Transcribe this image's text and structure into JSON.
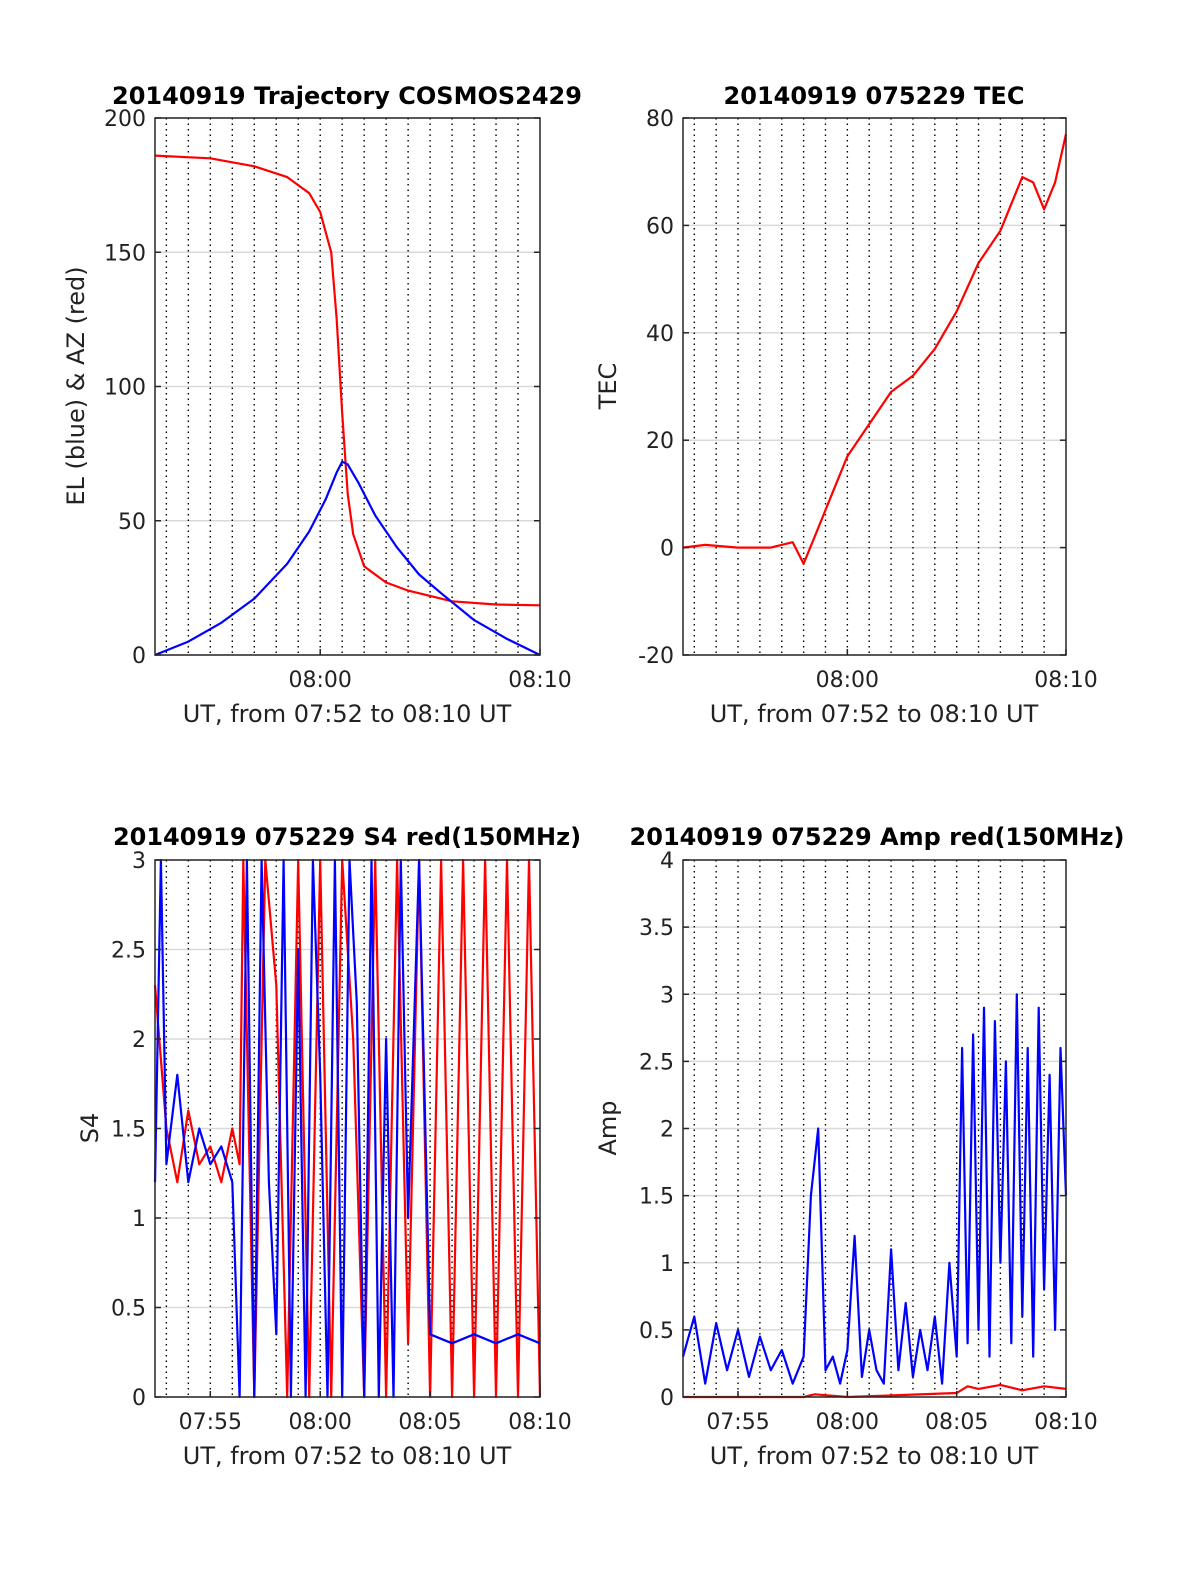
{
  "colors": {
    "az": "#ff0000",
    "el": "#0000ff",
    "red": "#ff0000",
    "blue": "#0000ff",
    "grid": "#d9d9d9",
    "vline": "#000000"
  },
  "chart_data": [
    {
      "id": "trajectory",
      "type": "line",
      "title": "20140919 Trajectory COSMOS2429",
      "xlabel": "UT, from 07:52 to 08:10 UT",
      "ylabel": "EL (blue) & AZ (red)",
      "xlim": [
        "07:52:29",
        "08:10:00"
      ],
      "ylim": [
        0,
        200
      ],
      "yticks": [
        "0",
        "50",
        "100",
        "150",
        "200"
      ],
      "xticks": [
        {
          "t": "08:00",
          "label": "08:00"
        },
        {
          "t": "08:10",
          "label": "08:10"
        }
      ],
      "grid": "horizontal",
      "series": [
        {
          "key": "az",
          "color": "#ff0000",
          "t": [
            "07:52:29",
            "07:55:00",
            "07:57:00",
            "07:58:30",
            "07:59:30",
            "08:00:00",
            "08:00:30",
            "08:00:45",
            "08:01:00",
            "08:01:15",
            "08:01:30",
            "08:02:00",
            "08:03:00",
            "08:04:00",
            "08:05:00",
            "08:06:00",
            "08:08:00",
            "08:10:00"
          ],
          "values": [
            186,
            185,
            182,
            178,
            172,
            165,
            150,
            125,
            90,
            60,
            45,
            33,
            27,
            24,
            22,
            20,
            18.8,
            18.5
          ]
        },
        {
          "key": "el",
          "color": "#0000ff",
          "t": [
            "07:52:29",
            "07:54:00",
            "07:55:30",
            "07:57:00",
            "07:58:30",
            "07:59:30",
            "08:00:15",
            "08:00:45",
            "08:01:00",
            "08:01:15",
            "08:01:45",
            "08:02:30",
            "08:03:30",
            "08:04:30",
            "08:05:30",
            "08:07:00",
            "08:08:30",
            "08:10:00"
          ],
          "values": [
            0,
            5,
            12,
            21,
            34,
            46,
            58,
            68,
            72,
            71,
            64,
            52,
            40,
            30,
            23,
            13,
            6,
            0
          ]
        }
      ]
    },
    {
      "id": "tec",
      "type": "line",
      "title": "20140919 075229 TEC",
      "xlabel": "UT, from 07:52 to 08:10 UT",
      "ylabel": "TEC",
      "xlim": [
        "07:52:29",
        "08:10:00"
      ],
      "ylim": [
        -20,
        80
      ],
      "yticks": [
        "-20",
        "0",
        "20",
        "40",
        "60",
        "80"
      ],
      "xticks": [
        {
          "t": "08:00",
          "label": "08:00"
        },
        {
          "t": "08:10",
          "label": "08:10"
        }
      ],
      "grid": "horizontal",
      "series": [
        {
          "key": "tec",
          "color": "#ff0000",
          "t": [
            "07:52:29",
            "07:53:30",
            "07:55:00",
            "07:56:30",
            "07:57:30",
            "07:58:00",
            "07:58:30",
            "07:59:00",
            "07:59:30",
            "08:00:00",
            "08:01:00",
            "08:02:00",
            "08:03:00",
            "08:04:00",
            "08:05:00",
            "08:06:00",
            "08:07:00",
            "08:07:30",
            "08:08:00",
            "08:08:30",
            "08:09:00",
            "08:09:30",
            "08:10:00"
          ],
          "values": [
            0,
            0.5,
            0,
            0,
            1,
            -3,
            2,
            7,
            12,
            17,
            23,
            29,
            32,
            37,
            44,
            53,
            59,
            64,
            69,
            68,
            63,
            68,
            77
          ]
        }
      ]
    },
    {
      "id": "s4",
      "type": "line",
      "title": "20140919 075229 S4 red(150MHz)",
      "xlabel": "UT, from 07:52 to 08:10 UT",
      "ylabel": "S4",
      "xlim": [
        "07:52:29",
        "08:10:00"
      ],
      "ylim": [
        0,
        3
      ],
      "yticks": [
        "0",
        "0.5",
        "1",
        "1.5",
        "2",
        "2.5",
        "3"
      ],
      "xticks": [
        {
          "t": "07:55",
          "label": "07:55"
        },
        {
          "t": "08:00",
          "label": "08:00"
        },
        {
          "t": "08:05",
          "label": "08:05"
        },
        {
          "t": "08:10",
          "label": "08:10"
        }
      ],
      "grid": "horizontal",
      "series": [
        {
          "key": "s4_red",
          "color": "#ff0000",
          "t": [
            "07:52:29",
            "07:53:00",
            "07:53:30",
            "07:54:00",
            "07:54:30",
            "07:55:00",
            "07:55:30",
            "07:56:00",
            "07:56:20",
            "07:56:30",
            "07:57:00",
            "07:57:30",
            "07:58:00",
            "07:58:30",
            "07:59:00",
            "07:59:30",
            "08:00:00",
            "08:00:30",
            "08:01:00",
            "08:01:30",
            "08:02:00",
            "08:02:30",
            "08:03:00",
            "08:03:30",
            "08:04:00",
            "08:04:30",
            "08:05:00",
            "08:05:30",
            "08:06:00",
            "08:06:30",
            "08:07:00",
            "08:07:30",
            "08:08:00",
            "08:08:30",
            "08:09:00",
            "08:09:30",
            "08:10:00"
          ],
          "values": [
            2.3,
            1.5,
            1.2,
            1.6,
            1.3,
            1.4,
            1.2,
            1.5,
            1.3,
            3,
            0,
            3,
            2.3,
            0,
            3,
            0,
            3,
            0,
            3,
            2.0,
            0,
            3,
            0,
            3,
            0.3,
            3,
            0,
            3,
            0,
            3,
            0,
            3,
            0,
            3,
            0,
            3,
            0
          ]
        },
        {
          "key": "s4_blue",
          "color": "#0000ff",
          "t": [
            "07:52:29",
            "07:52:45",
            "07:53:00",
            "07:53:30",
            "07:54:00",
            "07:54:30",
            "07:55:00",
            "07:55:30",
            "07:56:00",
            "07:56:20",
            "07:56:40",
            "07:57:00",
            "07:57:20",
            "07:57:40",
            "07:58:00",
            "07:58:20",
            "07:58:40",
            "07:59:00",
            "07:59:20",
            "07:59:40",
            "08:00:00",
            "08:00:20",
            "08:00:40",
            "08:01:00",
            "08:01:20",
            "08:01:40",
            "08:02:00",
            "08:02:20",
            "08:02:40",
            "08:03:00",
            "08:03:20",
            "08:03:40",
            "08:04:00",
            "08:04:30",
            "08:05:00",
            "08:06:00",
            "08:07:00",
            "08:08:00",
            "08:09:00",
            "08:10:00"
          ],
          "values": [
            1.2,
            3,
            1.3,
            1.8,
            1.2,
            1.5,
            1.3,
            1.4,
            1.2,
            0,
            3,
            0,
            3,
            1.2,
            0.35,
            3,
            0,
            2.5,
            0,
            3,
            1.8,
            0,
            3,
            0,
            3,
            2.2,
            0,
            3,
            0,
            2.0,
            0,
            3,
            1.0,
            3,
            0.35,
            0.3,
            0.35,
            0.3,
            0.35,
            0.3
          ]
        }
      ]
    },
    {
      "id": "amp",
      "type": "line",
      "title": "20140919 075229 Amp red(150MHz)",
      "xlabel": "UT, from 07:52 to 08:10 UT",
      "ylabel": "Amp",
      "xlim": [
        "07:52:29",
        "08:10:00"
      ],
      "ylim": [
        0,
        4
      ],
      "yticks": [
        "0",
        "0.5",
        "1",
        "1.5",
        "2",
        "2.5",
        "3",
        "3.5",
        "4"
      ],
      "xticks": [
        {
          "t": "07:55",
          "label": "07:55"
        },
        {
          "t": "08:00",
          "label": "08:00"
        },
        {
          "t": "08:05",
          "label": "08:05"
        },
        {
          "t": "08:10",
          "label": "08:10"
        }
      ],
      "grid": "horizontal",
      "series": [
        {
          "key": "amp_red",
          "color": "#ff0000",
          "t": [
            "07:52:29",
            "07:58:00",
            "07:58:30",
            "08:00:00",
            "08:05:00",
            "08:05:30",
            "08:06:00",
            "08:07:00",
            "08:08:00",
            "08:09:00",
            "08:10:00"
          ],
          "values": [
            0,
            0,
            0.02,
            0,
            0.03,
            0.08,
            0.06,
            0.09,
            0.05,
            0.08,
            0.06
          ]
        },
        {
          "key": "amp_blue",
          "color": "#0000ff",
          "t": [
            "07:52:29",
            "07:53:00",
            "07:53:30",
            "07:54:00",
            "07:54:30",
            "07:55:00",
            "07:55:30",
            "07:56:00",
            "07:56:30",
            "07:57:00",
            "07:57:30",
            "07:58:00",
            "07:58:20",
            "07:58:40",
            "07:59:00",
            "07:59:20",
            "07:59:40",
            "08:00:00",
            "08:00:20",
            "08:00:40",
            "08:01:00",
            "08:01:20",
            "08:01:40",
            "08:02:00",
            "08:02:20",
            "08:02:40",
            "08:03:00",
            "08:03:20",
            "08:03:40",
            "08:04:00",
            "08:04:20",
            "08:04:40",
            "08:05:00",
            "08:05:15",
            "08:05:30",
            "08:05:45",
            "08:06:00",
            "08:06:15",
            "08:06:30",
            "08:06:45",
            "08:07:00",
            "08:07:15",
            "08:07:30",
            "08:07:45",
            "08:08:00",
            "08:08:15",
            "08:08:30",
            "08:08:45",
            "08:09:00",
            "08:09:15",
            "08:09:30",
            "08:09:45",
            "08:10:00"
          ],
          "values": [
            0.3,
            0.6,
            0.1,
            0.55,
            0.2,
            0.5,
            0.15,
            0.45,
            0.2,
            0.35,
            0.1,
            0.3,
            1.5,
            2.0,
            0.2,
            0.3,
            0.1,
            0.35,
            1.2,
            0.15,
            0.5,
            0.2,
            0.1,
            1.1,
            0.2,
            0.7,
            0.15,
            0.5,
            0.2,
            0.6,
            0.1,
            1.0,
            0.3,
            2.6,
            0.4,
            2.7,
            0.5,
            2.9,
            0.3,
            2.8,
            1.0,
            2.5,
            0.4,
            3.0,
            0.6,
            2.6,
            0.3,
            2.9,
            0.8,
            2.4,
            0.5,
            2.6,
            1.5
          ]
        }
      ]
    }
  ]
}
